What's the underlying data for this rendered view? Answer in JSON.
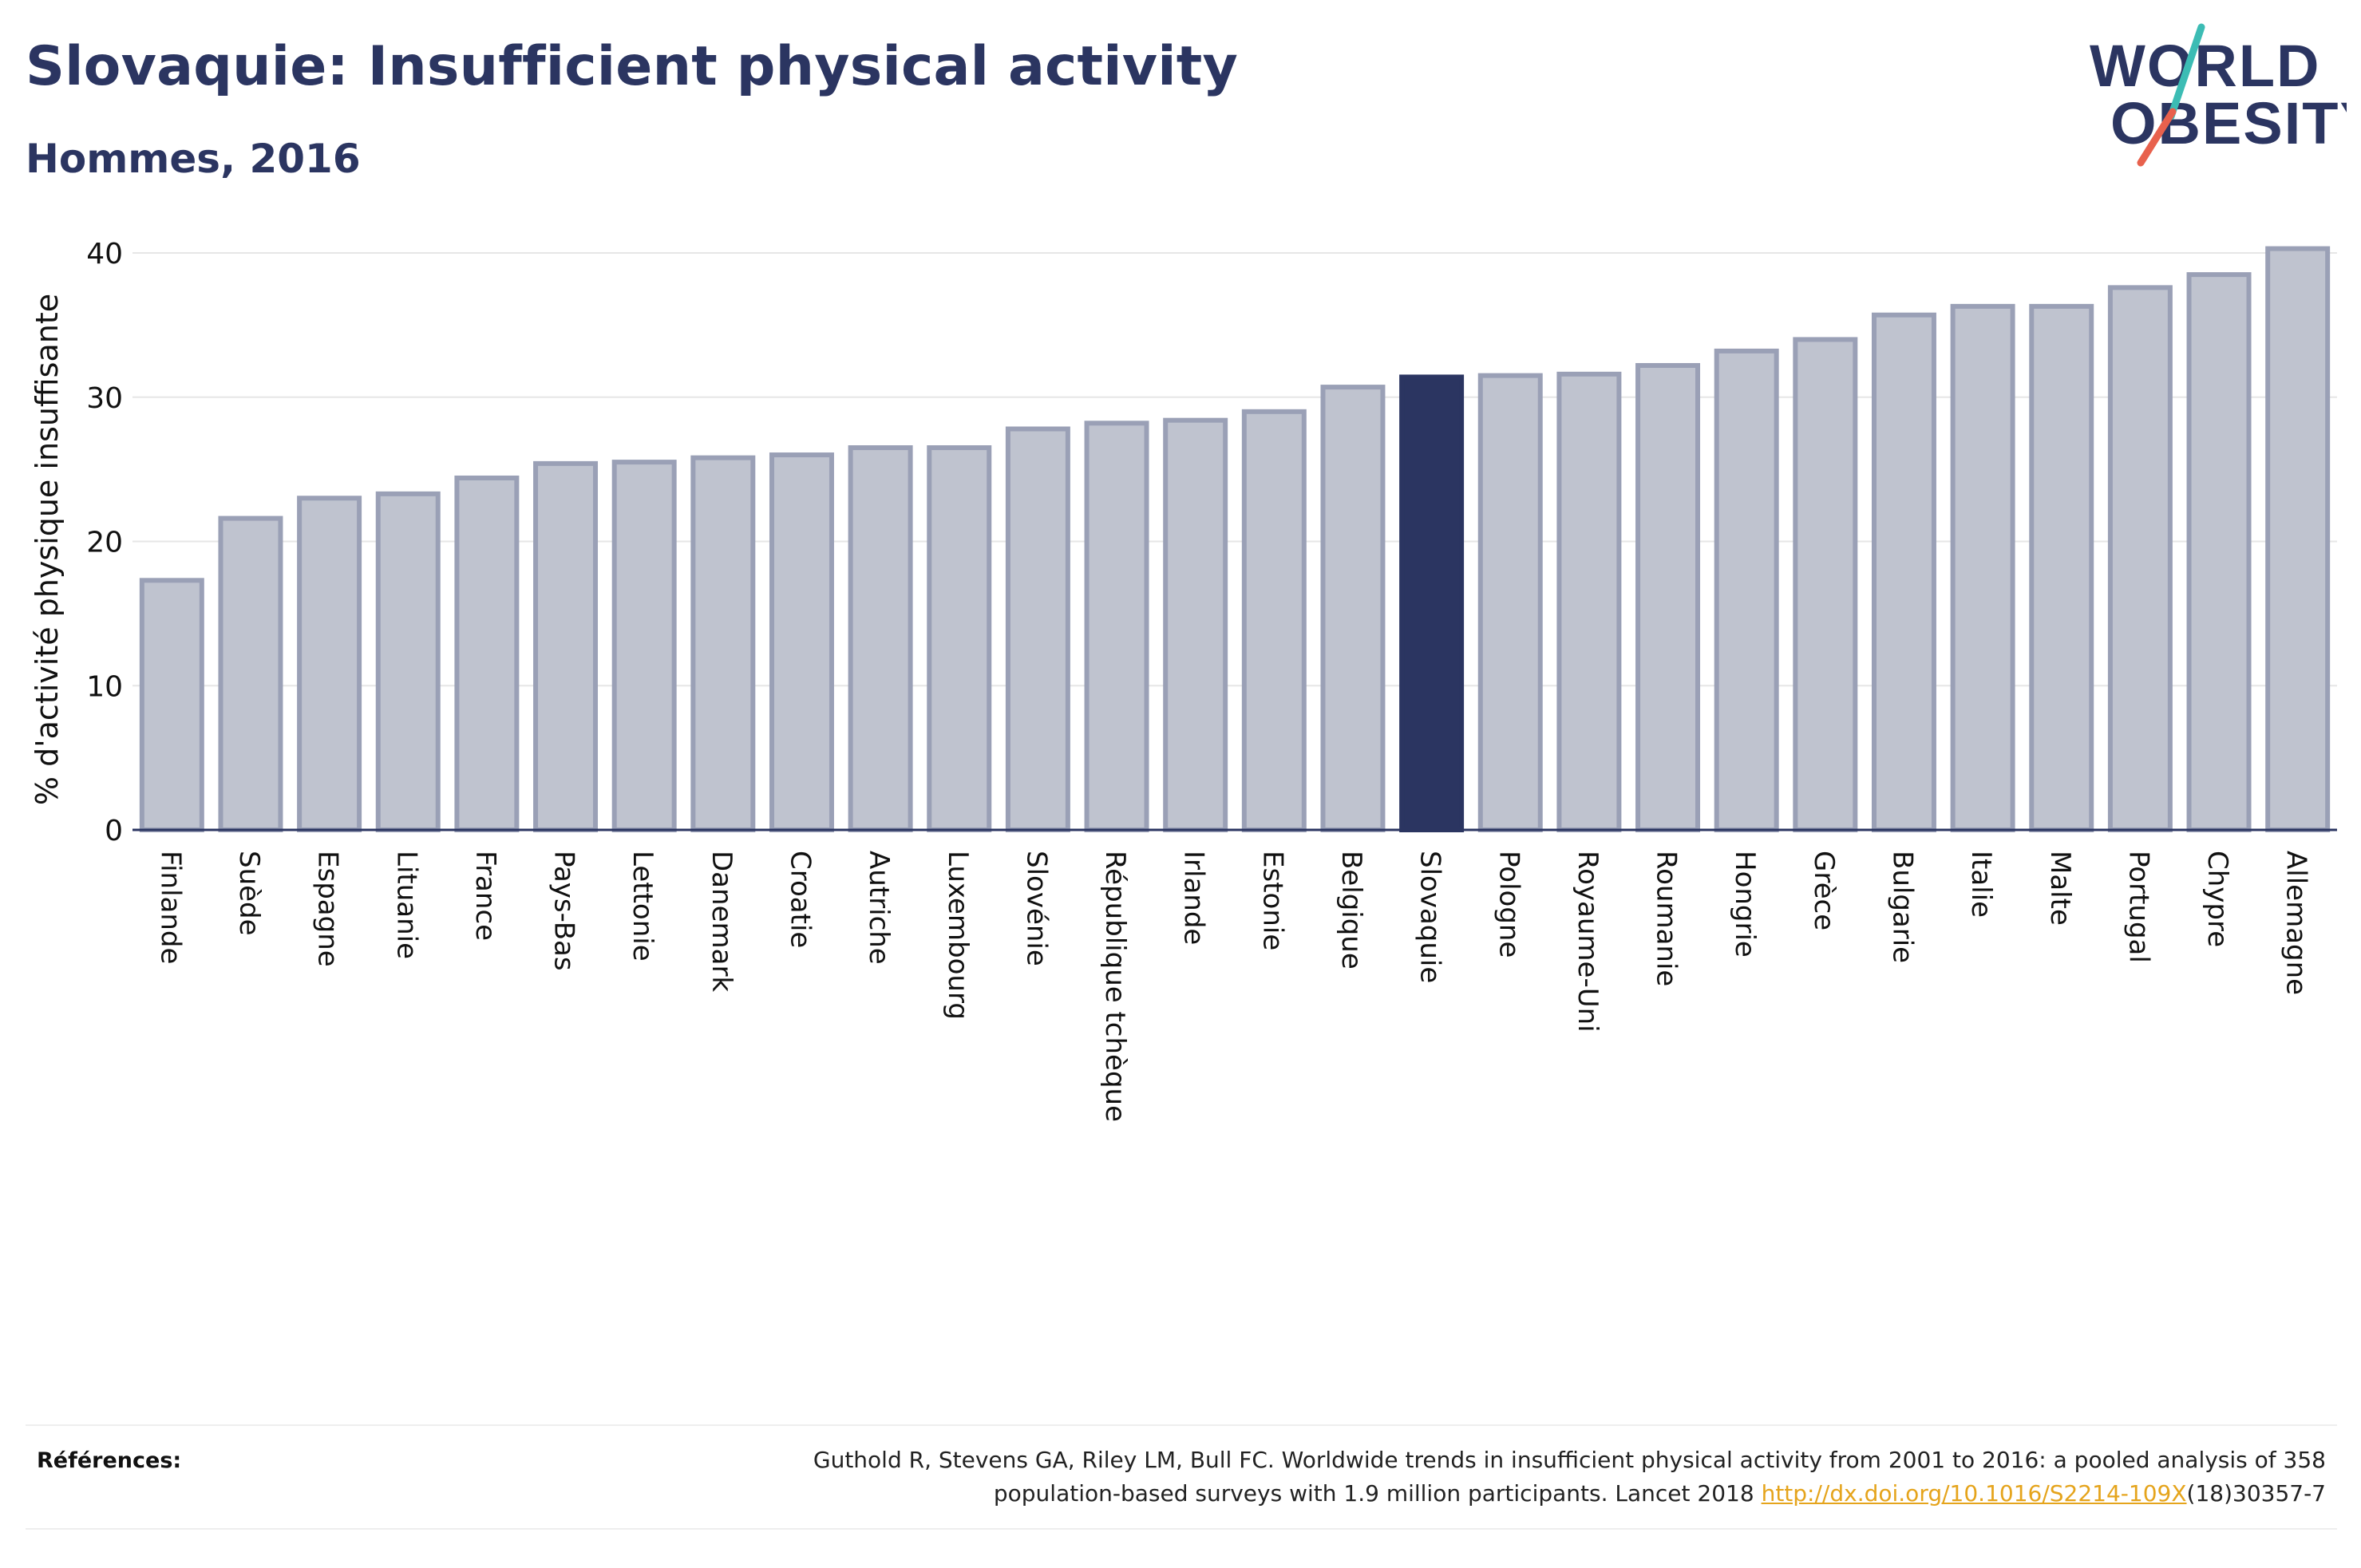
{
  "header": {
    "title": "Slovaquie: Insufficient physical activity",
    "subtitle": "Hommes, 2016"
  },
  "logo": {
    "line1": "WORLD",
    "line2": "OBESITY",
    "accent_colors": [
      "#3cbcb4",
      "#e8614d"
    ]
  },
  "colors": {
    "bar_default": "#bfc3cf",
    "bar_default_stroke": "#9aa0b6",
    "bar_highlight": "#2b3561",
    "axis": "#2b3561",
    "grid": "#e6e6e6",
    "text": "#2b3561"
  },
  "chart_data": {
    "type": "bar",
    "title": "Slovaquie: Insufficient physical activity",
    "subtitle": "Hommes, 2016",
    "ylabel": "% d'activité physique insuffisante",
    "xlabel": "",
    "ylim": [
      0,
      40
    ],
    "yticks": [
      0,
      10,
      20,
      30,
      40
    ],
    "grid": true,
    "highlight": "Slovaquie",
    "categories": [
      "Finlande",
      "Suède",
      "Espagne",
      "Lituanie",
      "France",
      "Pays-Bas",
      "Lettonie",
      "Danemark",
      "Croatie",
      "Autriche",
      "Luxembourg",
      "Slovénie",
      "République tchèque",
      "Irlande",
      "Estonie",
      "Belgique",
      "Slovaquie",
      "Pologne",
      "Royaume-Uni",
      "Roumanie",
      "Hongrie",
      "Grèce",
      "Bulgarie",
      "Italie",
      "Malte",
      "Portugal",
      "Chypre",
      "Allemagne"
    ],
    "values": [
      17.3,
      21.6,
      23.0,
      23.3,
      24.4,
      25.4,
      25.5,
      25.8,
      26.0,
      26.5,
      26.5,
      27.8,
      28.2,
      28.4,
      29.0,
      30.7,
      31.4,
      31.5,
      31.6,
      32.2,
      33.2,
      34.0,
      35.7,
      36.3,
      36.3,
      37.6,
      38.5,
      40.3
    ]
  },
  "references": {
    "label": "Références:",
    "line1": "Guthold R, Stevens GA, Riley LM, Bull FC. Worldwide trends in insufficient physical activity from 2001 to 2016: a pooled analysis of 358",
    "line2_before": "population-based surveys with 1.9 million participants. Lancet 2018 ",
    "line2_link": "http://dx.doi.org/10.1016/S2214-109X",
    "line2_after": "(18)30357-7"
  }
}
